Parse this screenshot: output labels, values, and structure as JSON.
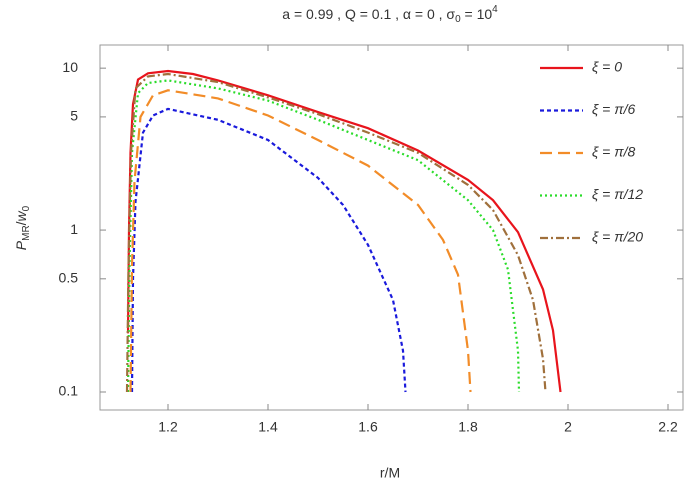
{
  "chart_data": {
    "type": "line",
    "title": [
      "a = 0.99 , Q = 0.1 , α = 0 , σ",
      "0",
      " = 10",
      "4"
    ],
    "xlabel": "r/M",
    "ylabel": [
      "P",
      "MR",
      "/",
      "w",
      "0"
    ],
    "xlim": [
      1.064,
      2.23
    ],
    "xticks": [
      1.2,
      1.4,
      1.6,
      1.8,
      2.0,
      2.2
    ],
    "ylim": [
      0.0774,
      13.9
    ],
    "yticks": [
      0.1,
      0.5,
      1,
      5,
      10
    ],
    "log_y": true,
    "legend": "upper right",
    "series": [
      {
        "name": "ξ = 0",
        "color": "#e8141c",
        "dash": "none",
        "x": [
          1.12,
          1.122,
          1.125,
          1.13,
          1.14,
          1.16,
          1.2,
          1.25,
          1.3,
          1.4,
          1.5,
          1.6,
          1.7,
          1.8,
          1.85,
          1.9,
          1.95,
          1.97,
          1.985
        ],
        "values": [
          0.23,
          1,
          3,
          6,
          8.5,
          9.3,
          9.6,
          9.2,
          8.4,
          6.8,
          5.35,
          4.26,
          3.1,
          2.04,
          1.53,
          0.97,
          0.43,
          0.24,
          0.1
        ]
      },
      {
        "name": "ξ = π/6",
        "color": "#1a1adc",
        "dash": "4,3",
        "x": [
          1.128,
          1.13,
          1.135,
          1.15,
          1.17,
          1.2,
          1.3,
          1.4,
          1.5,
          1.55,
          1.6,
          1.65,
          1.67,
          1.675
        ],
        "values": [
          0.1,
          0.5,
          1.5,
          4,
          5.1,
          5.6,
          4.8,
          3.6,
          2.1,
          1.43,
          0.81,
          0.37,
          0.18,
          0.1
        ]
      },
      {
        "name": "ξ = π/8",
        "color": "#f28c28",
        "dash": "12,6",
        "x": [
          1.125,
          1.128,
          1.133,
          1.145,
          1.17,
          1.2,
          1.3,
          1.4,
          1.5,
          1.6,
          1.7,
          1.75,
          1.78,
          1.8,
          1.805
        ],
        "values": [
          0.1,
          0.6,
          2,
          5,
          6.8,
          7.3,
          6.5,
          5.1,
          3.6,
          2.5,
          1.43,
          0.87,
          0.53,
          0.18,
          0.1
        ]
      },
      {
        "name": "ξ = π/12",
        "color": "#2adc2a",
        "dash": "2,3",
        "x": [
          1.12,
          1.123,
          1.128,
          1.14,
          1.16,
          1.2,
          1.3,
          1.4,
          1.5,
          1.6,
          1.7,
          1.8,
          1.85,
          1.88,
          1.9,
          1.902
        ],
        "values": [
          0.1,
          0.6,
          3,
          7,
          8.1,
          8.4,
          7.5,
          6.3,
          4.8,
          3.6,
          2.7,
          1.53,
          1,
          0.57,
          0.18,
          0.1
        ]
      },
      {
        "name": "ξ = π/20",
        "color": "#a0703c",
        "dash": "8,3,2,3",
        "x": [
          1.118,
          1.121,
          1.126,
          1.135,
          1.16,
          1.2,
          1.3,
          1.4,
          1.5,
          1.6,
          1.7,
          1.8,
          1.85,
          1.9,
          1.93,
          1.95,
          1.955
        ],
        "values": [
          0.1,
          0.6,
          3,
          7.5,
          8.9,
          9.2,
          8.2,
          6.6,
          5.2,
          4.0,
          3.0,
          1.9,
          1.33,
          0.7,
          0.37,
          0.16,
          0.1
        ]
      }
    ]
  }
}
